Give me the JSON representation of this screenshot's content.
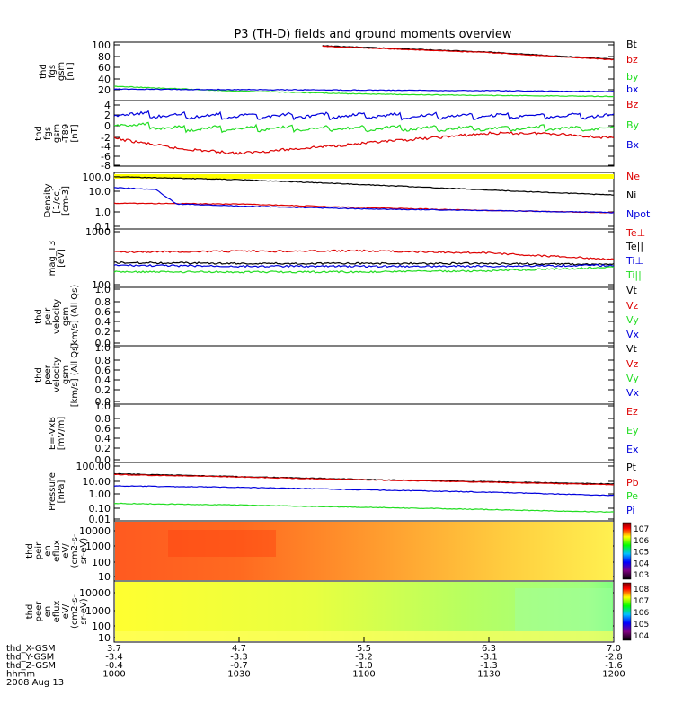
{
  "title": "P3 (TH-D) fields and ground moments overview",
  "colors": {
    "black": "#000000",
    "red": "#dd0000",
    "green": "#22dd22",
    "blue": "#0000dd",
    "yellow": "#ffff00",
    "spec1_base": "#ffa040",
    "spec2_base": "#ffff40"
  },
  "panels": [
    {
      "id": "fgs",
      "ylabel": [
        "thd",
        "fgs",
        "gsm",
        "[nT]"
      ],
      "ticks": [
        "100",
        "80",
        "60",
        "40",
        "20"
      ],
      "legend": [
        {
          "text": "Bt",
          "color": "#000000"
        },
        {
          "text": "bz",
          "color": "#dd0000"
        },
        {
          "text": "by",
          "color": "#22dd22"
        },
        {
          "text": "bx",
          "color": "#0000dd"
        }
      ]
    },
    {
      "id": "t89",
      "ylabel": [
        "thd",
        "fgs",
        "gsm",
        "-T89",
        "[nT]"
      ],
      "ticks": [
        "4",
        "2",
        "0",
        "-2",
        "-4",
        "-6",
        "-8"
      ],
      "legend": [
        {
          "text": "Bz",
          "color": "#dd0000"
        },
        {
          "text": "By",
          "color": "#22dd22"
        },
        {
          "text": "Bx",
          "color": "#0000dd"
        }
      ]
    },
    {
      "id": "density",
      "ylabel": [
        "Density",
        "[1/cc]",
        "[cm^-3]"
      ],
      "ticks": [
        "100.0",
        "10.0",
        "1.0",
        "0.1"
      ],
      "legend": [
        {
          "text": "Ne",
          "color": "#dd0000"
        },
        {
          "text": "Ni",
          "color": "#000000"
        },
        {
          "text": "Npot",
          "color": "#0000dd"
        }
      ]
    },
    {
      "id": "temp",
      "ylabel": [
        "mag_T3",
        "[eV]"
      ],
      "ticks": [
        "1000",
        "100"
      ],
      "legend": [
        {
          "text": "Te⊥",
          "color": "#dd0000"
        },
        {
          "text": "Te||",
          "color": "#000000"
        },
        {
          "text": "Ti⊥",
          "color": "#0000dd"
        },
        {
          "text": "Ti||",
          "color": "#22dd22"
        }
      ]
    },
    {
      "id": "vi",
      "ylabel": [
        "thd",
        "peir",
        "velocity",
        "gsm",
        "[km/s] (All Qs)"
      ],
      "ticks": [
        "1.0",
        "0.8",
        "0.6",
        "0.4",
        "0.2",
        "0.0"
      ],
      "legend": [
        {
          "text": "Vt",
          "color": "#000000"
        },
        {
          "text": "Vz",
          "color": "#dd0000"
        },
        {
          "text": "Vy",
          "color": "#22dd22"
        },
        {
          "text": "Vx",
          "color": "#0000dd"
        }
      ]
    },
    {
      "id": "ve",
      "ylabel": [
        "thd",
        "peer",
        "velocity",
        "gsm",
        "[km/s] (All Qs)"
      ],
      "ticks": [
        "1.0",
        "0.8",
        "0.6",
        "0.4",
        "0.2",
        "0.0"
      ],
      "legend": [
        {
          "text": "Vt",
          "color": "#000000"
        },
        {
          "text": "Vz",
          "color": "#dd0000"
        },
        {
          "text": "Vy",
          "color": "#22dd22"
        },
        {
          "text": "Vx",
          "color": "#0000dd"
        }
      ]
    },
    {
      "id": "efield",
      "ylabel": [
        "E=-VxB",
        "[mV/m]"
      ],
      "ticks": [
        "1.0",
        "0.8",
        "0.6",
        "0.4",
        "0.2",
        "0.0"
      ],
      "legend": [
        {
          "text": "Ez",
          "color": "#dd0000"
        },
        {
          "text": "Ey",
          "color": "#22dd22"
        },
        {
          "text": "Ex",
          "color": "#0000dd"
        }
      ]
    },
    {
      "id": "pressure",
      "ylabel": [
        "Pressure",
        "[nPa]"
      ],
      "ticks": [
        "100.00",
        "10.00",
        "1.00",
        "0.10",
        "0.01"
      ],
      "legend": [
        {
          "text": "Pt",
          "color": "#000000"
        },
        {
          "text": "Pb",
          "color": "#dd0000"
        },
        {
          "text": "Pe",
          "color": "#22dd22"
        },
        {
          "text": "Pi",
          "color": "#0000dd"
        }
      ]
    },
    {
      "id": "ispec",
      "ylabel": [
        "thd",
        "peir",
        "en",
        "eflux",
        "eV/",
        "(cm^2-s-",
        "sr-eV)"
      ],
      "ticks": [
        "10000",
        "1000",
        "100",
        "10"
      ],
      "colorbar": [
        "10^7",
        "10^6",
        "10^5",
        "10^4",
        "10^3"
      ]
    },
    {
      "id": "espec",
      "ylabel": [
        "thd",
        "peer",
        "en",
        "eflux",
        "eV/",
        "(cm^2-s-",
        "sr-eV)"
      ],
      "ticks": [
        "10000",
        "1000",
        "100",
        "10"
      ],
      "colorbar": [
        "10^8",
        "10^7",
        "10^6",
        "10^5",
        "10^4"
      ]
    }
  ],
  "xaxis": {
    "rows": [
      {
        "label": "thd_X-GSM",
        "values": [
          "3.7",
          "4.7",
          "5.5",
          "6.3",
          "7.0"
        ]
      },
      {
        "label": "thd_Y-GSM",
        "values": [
          "-3.4",
          "-3.3",
          "-3.2",
          "-3.1",
          "-2.8"
        ]
      },
      {
        "label": "thd_Z-GSM",
        "values": [
          "-0.4",
          "-0.7",
          "-1.0",
          "-1.3",
          "-1.6"
        ]
      },
      {
        "label": "hhmm",
        "values": [
          "1000",
          "1030",
          "1100",
          "1130",
          "1200"
        ]
      }
    ],
    "date": "2008 Aug 13"
  },
  "chart_data": {
    "type": "line",
    "title": "P3 (TH-D) fields and ground moments overview",
    "x": [
      "1000",
      "1030",
      "1100",
      "1130",
      "1200"
    ],
    "xlabel": "hhmm",
    "date": "2008 Aug 13",
    "ephemeris": {
      "thd_X-GSM": [
        3.7,
        4.7,
        5.5,
        6.3,
        7.0
      ],
      "thd_Y-GSM": [
        -3.4,
        -3.3,
        -3.2,
        -3.1,
        -2.8
      ],
      "thd_Z-GSM": [
        -0.4,
        -0.7,
        -1.0,
        -1.3,
        -1.6
      ]
    },
    "panels": [
      {
        "id": "fgs",
        "scale": "linear",
        "ylim": [
          0,
          110
        ],
        "series": [
          {
            "name": "Bt",
            "x": [
              1050,
              1130,
              1200
            ],
            "y": [
              108,
              95,
              80
            ]
          },
          {
            "name": "bz",
            "x": [
              1050,
              1130,
              1200
            ],
            "y": [
              107,
              94,
              79
            ]
          },
          {
            "name": "by",
            "x": [
              1000,
              1030,
              1100,
              1130,
              1200
            ],
            "y": [
              24,
              14,
              8,
              5,
              3
            ]
          },
          {
            "name": "bx",
            "x": [
              1000,
              1030,
              1100,
              1130,
              1200
            ],
            "y": [
              18,
              17,
              16,
              15,
              13
            ]
          }
        ]
      },
      {
        "id": "t89",
        "scale": "linear",
        "ylim": [
          -8,
          4
        ],
        "series": [
          {
            "name": "Bz",
            "x": [
              1000,
              1015,
              1030,
              1045,
              1100,
              1115,
              1130,
              1145,
              1200
            ],
            "y": [
              -3,
              -5,
              -6,
              -5,
              -4,
              -3,
              -2,
              -2,
              -3
            ]
          },
          {
            "name": "By",
            "x": [
              1000,
              1015,
              1030,
              1045,
              1100,
              1115,
              1130,
              1145,
              1200
            ],
            "y": [
              0,
              -1,
              -1,
              -1,
              -1,
              -1,
              -1,
              -1,
              -1
            ]
          },
          {
            "name": "Bx",
            "x": [
              1000,
              1015,
              1030,
              1045,
              1100,
              1115,
              1130,
              1145,
              1200
            ],
            "y": [
              2,
              1.5,
              1.5,
              1.5,
              1.5,
              1.5,
              1.5,
              1.5,
              1.5
            ]
          }
        ]
      },
      {
        "id": "density",
        "scale": "log",
        "ylim": [
          0.1,
          100
        ],
        "series": [
          {
            "name": "Ne",
            "x": [
              1000,
              1030,
              1100,
              1130,
              1200
            ],
            "y": [
              2.2,
              2.0,
              1.2,
              0.8,
              0.6
            ]
          },
          {
            "name": "Ni",
            "x": [
              1000,
              1030,
              1100,
              1130,
              1200
            ],
            "y": [
              90,
              60,
              30,
              14,
              7
            ]
          },
          {
            "name": "Npot",
            "x": [
              1000,
              1010,
              1015,
              1030,
              1100,
              1130,
              1200
            ],
            "y": [
              20,
              15,
              2,
              1.5,
              1,
              0.8,
              0.6
            ]
          }
        ]
      },
      {
        "id": "temp",
        "scale": "log",
        "ylim": [
          100,
          1000
        ],
        "series": [
          {
            "name": "Te⊥",
            "x": [
              1000,
              1030,
              1100,
              1130,
              1200
            ],
            "y": [
              420,
              430,
              440,
              400,
              300
            ]
          },
          {
            "name": "Te||",
            "x": [
              1000,
              1030,
              1100,
              1130,
              1200
            ],
            "y": [
              260,
              250,
              250,
              250,
              240
            ]
          },
          {
            "name": "Ti⊥",
            "x": [
              1000,
              1030,
              1100,
              1130,
              1200
            ],
            "y": [
              230,
              220,
              220,
              220,
              230
            ]
          },
          {
            "name": "Ti||",
            "x": [
              1000,
              1030,
              1100,
              1130,
              1200
            ],
            "y": [
              170,
              170,
              170,
              180,
              210
            ]
          }
        ]
      },
      {
        "id": "pressure",
        "scale": "log",
        "ylim": [
          0.01,
          100
        ],
        "series": [
          {
            "name": "Pt",
            "x": [
              1000,
              1030,
              1100,
              1130,
              1200
            ],
            "y": [
              25,
              15,
              9,
              6,
              4
            ]
          },
          {
            "name": "Pb",
            "x": [
              1000,
              1030,
              1100,
              1130,
              1200
            ],
            "y": [
              22,
              14,
              8.5,
              5.5,
              3.5
            ]
          },
          {
            "name": "Pe",
            "x": [
              1000,
              1030,
              1100,
              1130,
              1200
            ],
            "y": [
              0.12,
              0.09,
              0.06,
              0.04,
              0.025
            ]
          },
          {
            "name": "Pi",
            "x": [
              1000,
              1030,
              1100,
              1130,
              1200
            ],
            "y": [
              2.8,
              2.2,
              1.4,
              0.9,
              0.5
            ]
          }
        ]
      }
    ]
  }
}
